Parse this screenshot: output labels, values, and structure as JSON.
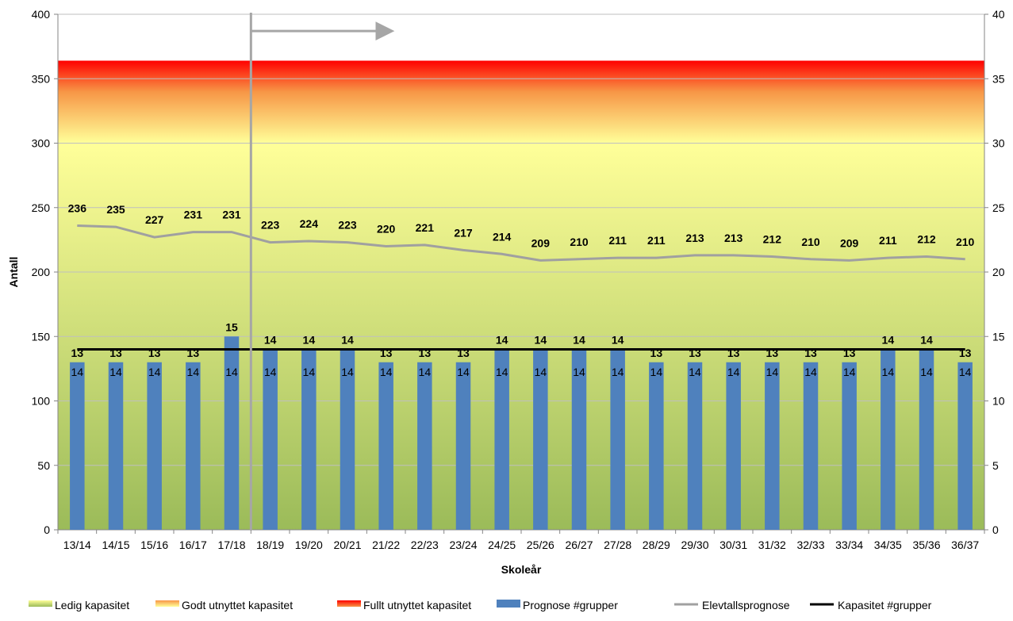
{
  "chart_data": {
    "type": "bar",
    "title": "",
    "xlabel": "Skoleår",
    "ylabel": "Antall",
    "ylim": [
      0,
      400
    ],
    "y2lim": [
      0,
      40
    ],
    "y_ticks": [
      0,
      50,
      100,
      150,
      200,
      250,
      300,
      350,
      400
    ],
    "y2_ticks": [
      0,
      5,
      10,
      15,
      20,
      25,
      30,
      35,
      40
    ],
    "grid": true,
    "legend_position": "bottom",
    "categories": [
      "13/14",
      "14/15",
      "15/16",
      "16/17",
      "17/18",
      "18/19",
      "19/20",
      "20/21",
      "21/22",
      "22/23",
      "23/24",
      "24/25",
      "25/26",
      "26/27",
      "27/28",
      "28/29",
      "29/30",
      "30/31",
      "31/32",
      "32/33",
      "33/34",
      "34/35",
      "35/36",
      "36/37"
    ],
    "capacity_zones": [
      {
        "name": "Ledig kapasitet",
        "from": 0,
        "to": 300,
        "color_bottom": "#9bbb59",
        "color_top": "#ffff99"
      },
      {
        "name": "Godt utnyttet kapasitet",
        "from": 300,
        "to": 340,
        "color_bottom": "#ffff99",
        "color_top": "#f79646"
      },
      {
        "name": "Fullt utnyttet kapasitet",
        "from": 340,
        "to": 364,
        "color_bottom": "#f79646",
        "color_top": "#ff0000"
      }
    ],
    "current_year_divider": "17/18",
    "series": [
      {
        "name": "Prognose #grupper",
        "type": "bar",
        "axis": "right",
        "color": "#4f81bd",
        "values": [
          13,
          13,
          13,
          13,
          15,
          14,
          14,
          14,
          13,
          13,
          13,
          14,
          14,
          14,
          14,
          13,
          13,
          13,
          13,
          13,
          13,
          14,
          14,
          13
        ],
        "inner_labels": [
          "14",
          "14",
          "14",
          "14",
          "14",
          "14",
          "14",
          "14",
          "14",
          "14",
          "14",
          "14",
          "14",
          "14",
          "14",
          "14",
          "14",
          "14",
          "14",
          "14",
          "14",
          "14",
          "14",
          "14"
        ]
      },
      {
        "name": "Elevtallsprognose",
        "type": "line",
        "axis": "left",
        "color": "#a0a0a0",
        "values": [
          236,
          235,
          227,
          231,
          231,
          223,
          224,
          223,
          220,
          221,
          217,
          214,
          209,
          210,
          211,
          211,
          213,
          213,
          212,
          210,
          209,
          211,
          212,
          210
        ]
      },
      {
        "name": "Kapasitet #grupper",
        "type": "line",
        "axis": "right",
        "color": "#000000",
        "values": [
          14,
          14,
          14,
          14,
          14,
          14,
          14,
          14,
          14,
          14,
          14,
          14,
          14,
          14,
          14,
          14,
          14,
          14,
          14,
          14,
          14,
          14,
          14,
          14
        ]
      }
    ],
    "legend": [
      {
        "label": "Ledig kapasitet",
        "kind": "gradient",
        "colors": [
          "#9bbb59",
          "#ffff99"
        ]
      },
      {
        "label": "Godt utnyttet kapasitet",
        "kind": "gradient",
        "colors": [
          "#ffff99",
          "#f79646"
        ]
      },
      {
        "label": "Fullt utnyttet kapasitet",
        "kind": "gradient",
        "colors": [
          "#f79646",
          "#ff0000"
        ]
      },
      {
        "label": "Prognose #grupper",
        "kind": "box",
        "colors": [
          "#4f81bd"
        ]
      },
      {
        "label": "Elevtallsprognose",
        "kind": "line",
        "colors": [
          "#a0a0a0"
        ]
      },
      {
        "label": "Kapasitet #grupper",
        "kind": "line",
        "colors": [
          "#000000"
        ]
      }
    ]
  }
}
